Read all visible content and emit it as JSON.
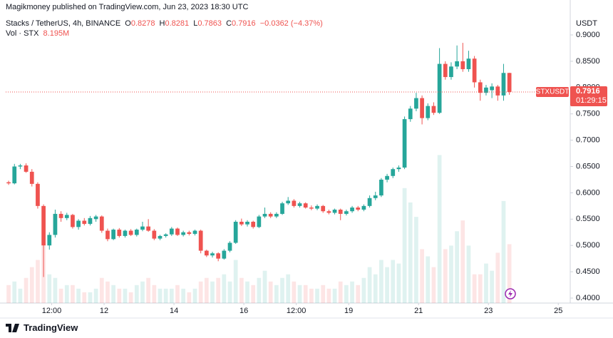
{
  "header": {
    "published": "Magikmoney published on TradingView.com, Jun 23, 2023 18:30 UTC"
  },
  "chart_data": {
    "type": "candlestick",
    "symbol": "Stacks / TetherUS, 4h, BINANCE",
    "legend": {
      "o_label": "O",
      "o": "0.8278",
      "h_label": "H",
      "h": "0.8281",
      "l_label": "L",
      "l": "0.7863",
      "c_label": "C",
      "c": "0.7916",
      "change": "−0.0362 (−4.37%)"
    },
    "volume_label": "Vol · STX",
    "volume_last_label": "8.195M",
    "price_unit": "USDT",
    "ticker": "STXUSDT",
    "countdown": "01:29:15",
    "up_color": "#26a69a",
    "down_color": "#ef5350",
    "grid": false,
    "open": [
      0.62,
      0.618,
      0.65,
      0.652,
      0.64,
      0.617,
      0.575,
      0.5,
      0.52,
      0.56,
      0.552,
      0.558,
      0.535,
      0.547,
      0.541,
      0.55,
      0.555,
      0.528,
      0.512,
      0.53,
      0.518,
      0.528,
      0.52,
      0.53,
      0.536,
      0.528,
      0.513,
      0.518,
      0.521,
      0.532,
      0.52,
      0.525,
      0.522,
      0.528,
      0.49,
      0.481,
      0.485,
      0.475,
      0.49,
      0.505,
      0.545,
      0.54,
      0.545,
      0.535,
      0.555,
      0.56,
      0.555,
      0.56,
      0.58,
      0.585,
      0.575,
      0.58,
      0.572,
      0.57,
      0.575,
      0.565,
      0.562,
      0.568,
      0.56,
      0.565,
      0.572,
      0.568,
      0.575,
      0.59,
      0.595,
      0.625,
      0.632,
      0.645,
      0.648,
      0.74,
      0.76,
      0.78,
      0.742,
      0.765,
      0.752,
      0.845,
      0.82,
      0.84,
      0.85,
      0.835,
      0.855,
      0.81,
      0.79,
      0.795,
      0.802,
      0.785,
      0.8278
    ],
    "high": [
      0.623,
      0.655,
      0.655,
      0.656,
      0.645,
      0.62,
      0.578,
      0.525,
      0.568,
      0.565,
      0.562,
      0.56,
      0.55,
      0.552,
      0.556,
      0.558,
      0.557,
      0.532,
      0.532,
      0.533,
      0.53,
      0.531,
      0.532,
      0.545,
      0.55,
      0.531,
      0.52,
      0.523,
      0.535,
      0.534,
      0.528,
      0.528,
      0.53,
      0.53,
      0.492,
      0.488,
      0.487,
      0.493,
      0.508,
      0.548,
      0.551,
      0.548,
      0.547,
      0.558,
      0.572,
      0.563,
      0.563,
      0.583,
      0.592,
      0.588,
      0.583,
      0.582,
      0.576,
      0.578,
      0.577,
      0.568,
      0.57,
      0.57,
      0.568,
      0.575,
      0.575,
      0.578,
      0.595,
      0.602,
      0.628,
      0.636,
      0.648,
      0.652,
      0.745,
      0.765,
      0.79,
      0.785,
      0.77,
      0.772,
      0.875,
      0.85,
      0.848,
      0.88,
      0.885,
      0.87,
      0.86,
      0.815,
      0.805,
      0.808,
      0.805,
      0.845,
      0.8281
    ],
    "low": [
      0.615,
      0.616,
      0.645,
      0.638,
      0.612,
      0.57,
      0.44,
      0.492,
      0.515,
      0.545,
      0.548,
      0.532,
      0.53,
      0.538,
      0.538,
      0.545,
      0.524,
      0.508,
      0.51,
      0.515,
      0.515,
      0.518,
      0.517,
      0.527,
      0.526,
      0.51,
      0.51,
      0.515,
      0.518,
      0.518,
      0.517,
      0.519,
      0.519,
      0.485,
      0.478,
      0.477,
      0.47,
      0.473,
      0.487,
      0.503,
      0.537,
      0.536,
      0.532,
      0.533,
      0.552,
      0.552,
      0.552,
      0.558,
      0.577,
      0.572,
      0.572,
      0.57,
      0.567,
      0.567,
      0.562,
      0.559,
      0.559,
      0.548,
      0.557,
      0.562,
      0.565,
      0.565,
      0.572,
      0.586,
      0.592,
      0.62,
      0.628,
      0.64,
      0.645,
      0.735,
      0.755,
      0.73,
      0.738,
      0.748,
      0.75,
      0.815,
      0.815,
      0.835,
      0.83,
      0.83,
      0.8,
      0.775,
      0.785,
      0.78,
      0.775,
      0.775,
      0.7863
    ],
    "close": [
      0.618,
      0.65,
      0.652,
      0.64,
      0.617,
      0.575,
      0.5,
      0.52,
      0.56,
      0.552,
      0.558,
      0.535,
      0.547,
      0.541,
      0.552,
      0.555,
      0.528,
      0.512,
      0.53,
      0.518,
      0.528,
      0.52,
      0.53,
      0.536,
      0.528,
      0.513,
      0.518,
      0.521,
      0.532,
      0.52,
      0.525,
      0.522,
      0.528,
      0.49,
      0.481,
      0.485,
      0.475,
      0.49,
      0.505,
      0.545,
      0.54,
      0.545,
      0.535,
      0.555,
      0.56,
      0.555,
      0.56,
      0.58,
      0.585,
      0.575,
      0.58,
      0.572,
      0.57,
      0.575,
      0.565,
      0.562,
      0.568,
      0.56,
      0.565,
      0.572,
      0.568,
      0.575,
      0.59,
      0.595,
      0.625,
      0.632,
      0.645,
      0.648,
      0.74,
      0.76,
      0.78,
      0.742,
      0.765,
      0.752,
      0.845,
      0.82,
      0.84,
      0.85,
      0.835,
      0.855,
      0.81,
      0.79,
      0.8,
      0.802,
      0.785,
      0.8278,
      0.7916
    ],
    "volume": [
      2.5,
      3,
      2,
      3.5,
      5,
      6,
      8,
      4,
      3.5,
      2,
      2.5,
      2.5,
      2,
      1.5,
      1.5,
      2,
      3.5,
      3,
      2.5,
      2,
      2,
      1.5,
      2.5,
      3,
      3.5,
      2.5,
      2,
      2,
      2,
      2.5,
      2,
      1.5,
      2,
      3,
      3.5,
      3,
      3.5,
      4,
      3,
      6,
      3.5,
      3,
      2.5,
      3.5,
      4.5,
      3,
      2.5,
      3.5,
      4,
      3,
      2.5,
      2.5,
      2,
      2,
      2.5,
      2,
      2,
      3,
      2.5,
      3,
      2.5,
      3.5,
      5,
      4,
      6,
      5,
      6,
      5.5,
      16,
      14,
      12,
      7.5,
      6.5,
      5,
      20.6,
      7.5,
      8,
      10,
      11.5,
      8,
      4,
      4,
      5.5,
      4.5,
      7,
      14.2,
      8.195
    ],
    "volume_ylim": [
      0,
      40
    ],
    "ylim": [
      0.3905,
      0.9366
    ],
    "yticks": [
      {
        "value": 0.4,
        "label": "0.4000"
      },
      {
        "value": 0.45,
        "label": "0.4500"
      },
      {
        "value": 0.5,
        "label": "0.5000"
      },
      {
        "value": 0.55,
        "label": "0.5500"
      },
      {
        "value": 0.6,
        "label": "0.6000"
      },
      {
        "value": 0.65,
        "label": "0.6500"
      },
      {
        "value": 0.7,
        "label": "0.7000"
      },
      {
        "value": 0.75,
        "label": "0.7500"
      },
      {
        "value": 0.8,
        "label": "0.8000"
      },
      {
        "value": 0.85,
        "label": "0.8500"
      },
      {
        "value": 0.9,
        "label": "0.9000"
      }
    ],
    "xlim": [
      -0.5,
      96.45
    ],
    "xticks": [
      {
        "value": 7.4,
        "label": "12:00"
      },
      {
        "value": 16.4,
        "label": "12"
      },
      {
        "value": 28.4,
        "label": "14"
      },
      {
        "value": 40.4,
        "label": "16"
      },
      {
        "value": 49.4,
        "label": "12:00"
      },
      {
        "value": 58.4,
        "label": "19"
      },
      {
        "value": 70.4,
        "label": "21"
      },
      {
        "value": 82.4,
        "label": "23"
      },
      {
        "value": 94.4,
        "label": "25"
      }
    ]
  },
  "footer": {
    "brand": "TradingView"
  }
}
